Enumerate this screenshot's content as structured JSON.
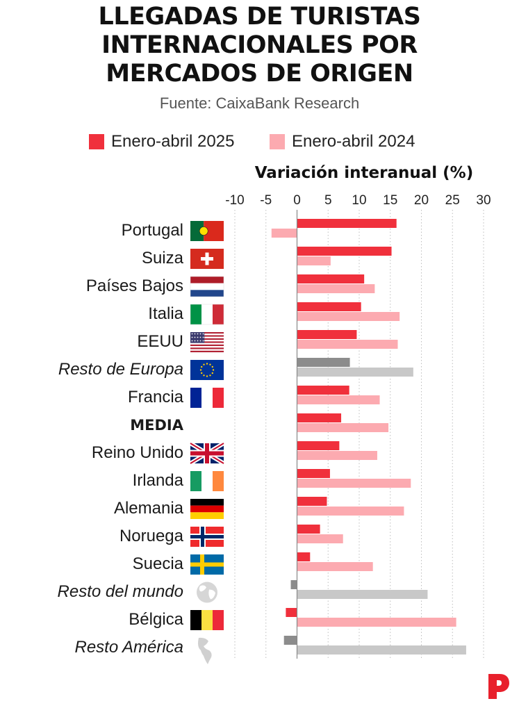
{
  "title_lines": [
    "LLEGADAS DE TURISTAS",
    "INTERNACIONALES POR",
    "MERCADOS DE ORIGEN"
  ],
  "source": "Fuente: CaixaBank Research",
  "colors": {
    "s2025": "#f0303c",
    "s2024": "#fcaab0",
    "grey2025": "#8c8c8c",
    "grey2024": "#c8c8c8",
    "text": "#1a1a1a",
    "logo": "#e8202c"
  },
  "chart_data": {
    "type": "bar",
    "orientation": "horizontal",
    "xlabel": "Variación interanual (%)",
    "xlim": [
      -10,
      30
    ],
    "xticks": [
      -10,
      -5,
      0,
      5,
      10,
      15,
      20,
      25,
      30
    ],
    "grid": true,
    "legend_position": "top",
    "categories": [
      {
        "label": "Portugal",
        "flag": "portugal-flag",
        "style": "normal"
      },
      {
        "label": "Suiza",
        "flag": "switzerland-flag",
        "style": "normal"
      },
      {
        "label": "Países Bajos",
        "flag": "netherlands-flag",
        "style": "normal"
      },
      {
        "label": "Italia",
        "flag": "italy-flag",
        "style": "normal"
      },
      {
        "label": "EEUU",
        "flag": "usa-flag",
        "style": "normal"
      },
      {
        "label": "Resto de Europa",
        "flag": "eu-flag",
        "style": "italic"
      },
      {
        "label": "Francia",
        "flag": "france-flag",
        "style": "normal"
      },
      {
        "label": "MEDIA",
        "flag": "",
        "style": "bold"
      },
      {
        "label": "Reino Unido",
        "flag": "uk-flag",
        "style": "normal"
      },
      {
        "label": "Irlanda",
        "flag": "ireland-flag",
        "style": "normal"
      },
      {
        "label": "Alemania",
        "flag": "germany-flag",
        "style": "normal"
      },
      {
        "label": "Noruega",
        "flag": "norway-flag",
        "style": "normal"
      },
      {
        "label": "Suecia",
        "flag": "sweden-flag",
        "style": "normal"
      },
      {
        "label": "Resto del mundo",
        "flag": "globe-icon",
        "style": "italic"
      },
      {
        "label": "Bélgica",
        "flag": "belgium-flag",
        "style": "normal"
      },
      {
        "label": "Resto América",
        "flag": "americas-map-icon",
        "style": "italic"
      }
    ],
    "series": [
      {
        "name": "Enero-abril 2025",
        "values": [
          16.0,
          15.2,
          10.8,
          10.3,
          9.6,
          8.5,
          8.4,
          7.1,
          6.8,
          5.3,
          4.8,
          3.7,
          2.1,
          -1.0,
          -1.8,
          -2.1
        ]
      },
      {
        "name": "Enero-abril 2024",
        "values": [
          -4.1,
          5.4,
          12.5,
          16.5,
          16.2,
          18.7,
          13.3,
          14.7,
          12.9,
          18.3,
          17.2,
          7.4,
          12.2,
          21.0,
          25.6,
          27.2
        ]
      }
    ],
    "grey_categories": [
      "Resto de Europa",
      "Resto del mundo",
      "Resto América"
    ]
  }
}
